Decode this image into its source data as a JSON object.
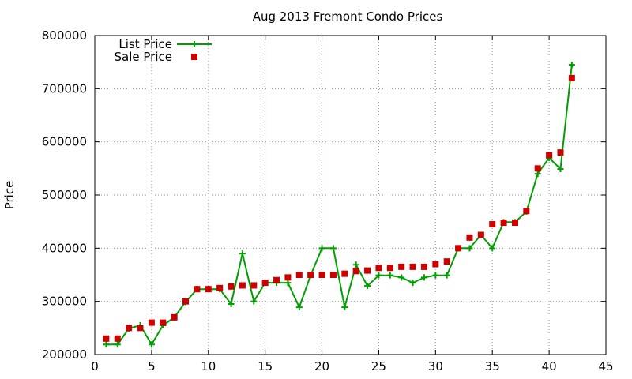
{
  "chart_data": {
    "type": "line",
    "title": "Aug 2013 Fremont Condo Prices",
    "xlabel": "",
    "ylabel": "Price",
    "xlim": [
      0,
      45
    ],
    "ylim": [
      200000,
      800000
    ],
    "xticks": [
      0,
      5,
      10,
      15,
      20,
      25,
      30,
      35,
      40,
      45
    ],
    "yticks": [
      200000,
      300000,
      400000,
      500000,
      600000,
      700000,
      800000
    ],
    "grid": true,
    "legend": "top-left",
    "series": [
      {
        "name": "List Price",
        "style": "lines+points",
        "marker": "plus",
        "color": "#00a000",
        "x": [
          1,
          2,
          3,
          4,
          5,
          6,
          7,
          8,
          9,
          10,
          11,
          12,
          13,
          14,
          15,
          16,
          17,
          18,
          19,
          20,
          21,
          22,
          23,
          24,
          25,
          26,
          27,
          28,
          29,
          30,
          31,
          32,
          33,
          34,
          35,
          36,
          37,
          38,
          39,
          40,
          41,
          42
        ],
        "values": [
          219000,
          219000,
          249000,
          255000,
          219000,
          255000,
          270000,
          299000,
          323000,
          323000,
          323000,
          295000,
          390000,
          300000,
          335000,
          335000,
          335000,
          289000,
          349000,
          400000,
          400000,
          289000,
          369000,
          329000,
          349000,
          349000,
          345000,
          335000,
          345000,
          349000,
          349000,
          400000,
          400000,
          425000,
          400000,
          449000,
          449000,
          469000,
          540000,
          570000,
          549000,
          745000
        ]
      },
      {
        "name": "Sale Price",
        "style": "points",
        "marker": "square",
        "color": "#cc0000",
        "x": [
          1,
          2,
          3,
          4,
          5,
          6,
          7,
          8,
          9,
          10,
          11,
          12,
          13,
          14,
          15,
          16,
          17,
          18,
          19,
          20,
          21,
          22,
          23,
          24,
          25,
          26,
          27,
          28,
          29,
          30,
          31,
          32,
          33,
          34,
          35,
          36,
          37,
          38,
          39,
          40,
          41,
          42
        ],
        "values": [
          230000,
          230000,
          250000,
          250000,
          260000,
          260000,
          270000,
          300000,
          323000,
          323000,
          325000,
          328000,
          330000,
          330000,
          335000,
          340000,
          345000,
          350000,
          350000,
          350000,
          350000,
          352000,
          357000,
          358000,
          363000,
          363000,
          365000,
          365000,
          365000,
          370000,
          375000,
          400000,
          420000,
          425000,
          445000,
          448000,
          448000,
          470000,
          550000,
          575000,
          580000,
          720000
        ]
      }
    ]
  }
}
